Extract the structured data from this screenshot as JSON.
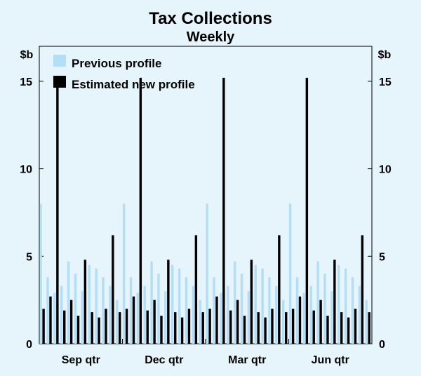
{
  "chart_data": {
    "type": "bar",
    "title": "Tax Collections",
    "subtitle": "Weekly",
    "ylabel_left": "$b",
    "ylabel_right": "$b",
    "ylim": [
      0,
      17
    ],
    "yticks": [
      0,
      5,
      10,
      15
    ],
    "quarters": [
      "Sep qtr",
      "Dec qtr",
      "Mar qtr",
      "Jun qtr"
    ],
    "series": [
      {
        "name": "Previous profile",
        "color": "#b3def5",
        "values": [
          8.0,
          3.8,
          2.9,
          3.3,
          4.7,
          4.0,
          3.0,
          4.5,
          4.3,
          3.8,
          3.3,
          2.5,
          8.0,
          3.8,
          2.9,
          3.3,
          4.7,
          4.0,
          3.0,
          4.5,
          4.3,
          3.8,
          3.3,
          2.5,
          8.0,
          3.8,
          2.9,
          3.3,
          4.7,
          4.0,
          3.0,
          4.5,
          4.3,
          3.8,
          3.3,
          2.5,
          8.0,
          3.8,
          2.9,
          3.3,
          4.7,
          4.0,
          3.0,
          4.5,
          4.3,
          3.8,
          3.3,
          2.5
        ]
      },
      {
        "name": "Estimated new profile",
        "color": "#000000",
        "values": [
          2.0,
          2.7,
          15.2,
          1.9,
          2.5,
          1.6,
          4.8,
          1.8,
          1.5,
          2.0,
          6.2,
          1.8,
          2.0,
          2.7,
          15.2,
          1.9,
          2.5,
          1.6,
          4.8,
          1.8,
          1.5,
          2.0,
          6.2,
          1.8,
          2.0,
          2.7,
          15.2,
          1.9,
          2.5,
          1.6,
          4.8,
          1.8,
          1.5,
          2.0,
          6.2,
          1.8,
          2.0,
          2.7,
          15.2,
          1.9,
          2.5,
          1.6,
          4.8,
          1.8,
          1.5,
          2.0,
          6.2,
          1.8
        ]
      }
    ]
  }
}
